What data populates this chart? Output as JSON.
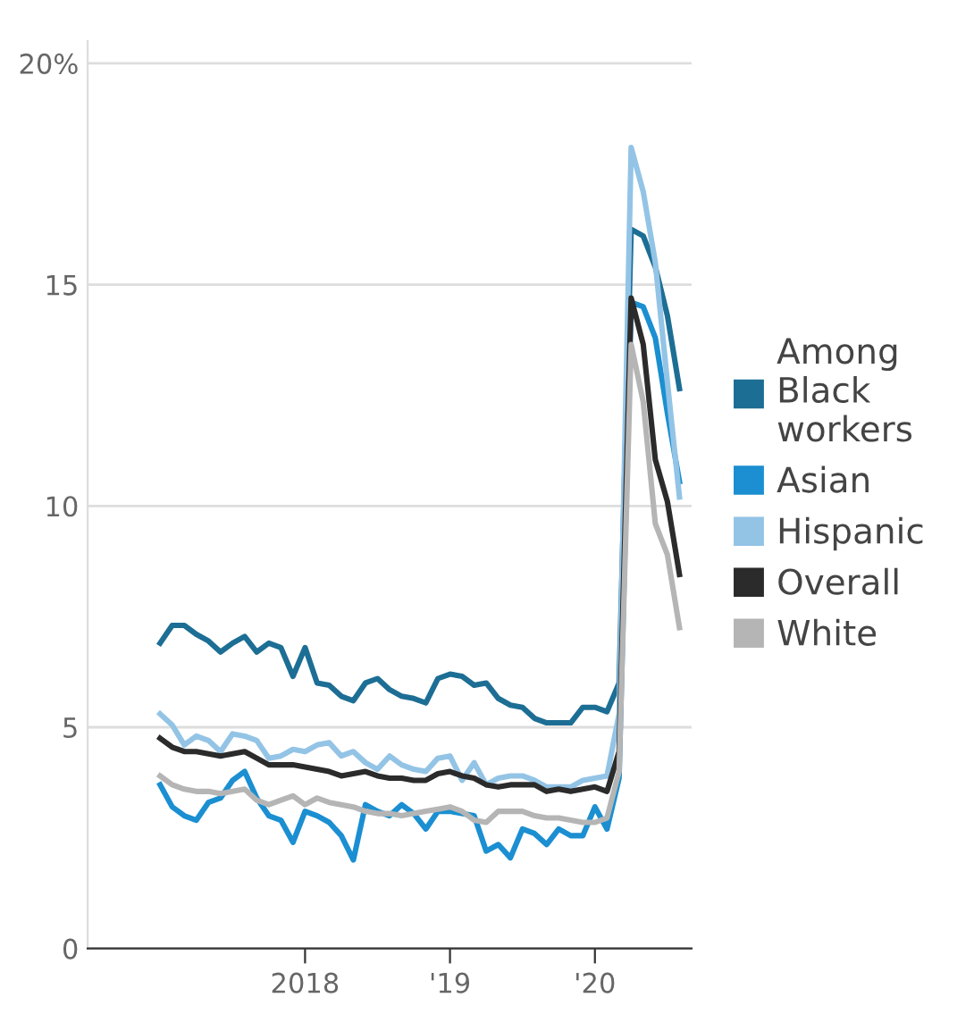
{
  "chart_data": {
    "type": "line",
    "x": [
      "2017-01",
      "2017-02",
      "2017-03",
      "2017-04",
      "2017-05",
      "2017-06",
      "2017-07",
      "2017-08",
      "2017-09",
      "2017-10",
      "2017-11",
      "2017-12",
      "2018-01",
      "2018-02",
      "2018-03",
      "2018-04",
      "2018-05",
      "2018-06",
      "2018-07",
      "2018-08",
      "2018-09",
      "2018-10",
      "2018-11",
      "2018-12",
      "2019-01",
      "2019-02",
      "2019-03",
      "2019-04",
      "2019-05",
      "2019-06",
      "2019-07",
      "2019-08",
      "2019-09",
      "2019-10",
      "2019-11",
      "2019-12",
      "2020-01",
      "2020-02",
      "2020-03",
      "2020-04",
      "2020-05",
      "2020-06",
      "2020-07",
      "2020-08"
    ],
    "series": [
      {
        "name": "Among\nBlack\nworkers",
        "color": "#1d6e94",
        "values": [
          6.9,
          7.3,
          7.3,
          7.1,
          6.95,
          6.7,
          6.9,
          7.05,
          6.7,
          6.9,
          6.8,
          6.15,
          6.8,
          6.0,
          5.95,
          5.7,
          5.6,
          6.0,
          6.1,
          5.85,
          5.7,
          5.65,
          5.55,
          6.1,
          6.2,
          6.15,
          5.95,
          6.0,
          5.65,
          5.5,
          5.45,
          5.2,
          5.1,
          5.1,
          5.1,
          5.45,
          5.45,
          5.35,
          6.0,
          16.25,
          16.1,
          15.4,
          14.3,
          12.65
        ]
      },
      {
        "name": "Asian",
        "color": "#1b8fd1",
        "values": [
          3.7,
          3.2,
          3.0,
          2.9,
          3.3,
          3.4,
          3.8,
          4.0,
          3.4,
          3.0,
          2.9,
          2.4,
          3.1,
          3.0,
          2.85,
          2.55,
          2.0,
          3.25,
          3.1,
          3.0,
          3.25,
          3.05,
          2.7,
          3.1,
          3.1,
          3.05,
          3.0,
          2.2,
          2.35,
          2.05,
          2.7,
          2.6,
          2.35,
          2.7,
          2.55,
          2.55,
          3.2,
          2.7,
          3.85,
          14.6,
          14.5,
          13.8,
          12.1,
          10.55
        ]
      },
      {
        "name": "Hispanic",
        "color": "#93c4e6",
        "values": [
          5.3,
          5.05,
          4.6,
          4.8,
          4.7,
          4.45,
          4.85,
          4.8,
          4.7,
          4.3,
          4.35,
          4.5,
          4.45,
          4.6,
          4.65,
          4.35,
          4.45,
          4.2,
          4.05,
          4.35,
          4.15,
          4.05,
          4.0,
          4.3,
          4.35,
          3.8,
          4.2,
          3.7,
          3.85,
          3.9,
          3.9,
          3.8,
          3.65,
          3.65,
          3.65,
          3.8,
          3.85,
          3.9,
          5.3,
          18.1,
          17.1,
          15.5,
          12.8,
          10.2
        ]
      },
      {
        "name": "Overall",
        "color": "#2b2b2b",
        "values": [
          4.75,
          4.55,
          4.45,
          4.45,
          4.4,
          4.35,
          4.4,
          4.45,
          4.3,
          4.15,
          4.15,
          4.15,
          4.1,
          4.05,
          4.0,
          3.9,
          3.95,
          4.0,
          3.9,
          3.85,
          3.85,
          3.8,
          3.8,
          3.95,
          4.0,
          3.9,
          3.85,
          3.7,
          3.65,
          3.7,
          3.7,
          3.7,
          3.55,
          3.6,
          3.55,
          3.6,
          3.65,
          3.55,
          4.45,
          14.7,
          13.65,
          11.05,
          10.1,
          8.45
        ]
      },
      {
        "name": "White",
        "color": "#b5b5b5",
        "values": [
          3.9,
          3.7,
          3.6,
          3.55,
          3.55,
          3.5,
          3.55,
          3.6,
          3.35,
          3.25,
          3.35,
          3.45,
          3.25,
          3.4,
          3.3,
          3.25,
          3.2,
          3.1,
          3.05,
          3.05,
          3.0,
          3.05,
          3.1,
          3.15,
          3.2,
          3.1,
          2.9,
          2.85,
          3.1,
          3.1,
          3.1,
          3.0,
          2.95,
          2.95,
          2.9,
          2.85,
          2.85,
          2.95,
          4.0,
          13.65,
          12.35,
          9.6,
          8.9,
          7.25
        ]
      }
    ],
    "xlim": [
      "2016-07",
      "2020-09"
    ],
    "xticks": [
      {
        "value": "2018-01",
        "label": "2018"
      },
      {
        "value": "2019-01",
        "label": "'19"
      },
      {
        "value": "2020-01",
        "label": "'20"
      }
    ],
    "ylim": [
      0,
      20.5
    ],
    "yticks": [
      0,
      5,
      10,
      15,
      {
        "value": 20,
        "label": "20%"
      }
    ],
    "grid": "y",
    "legend": "right",
    "line_style": "solid",
    "marker": "none"
  }
}
